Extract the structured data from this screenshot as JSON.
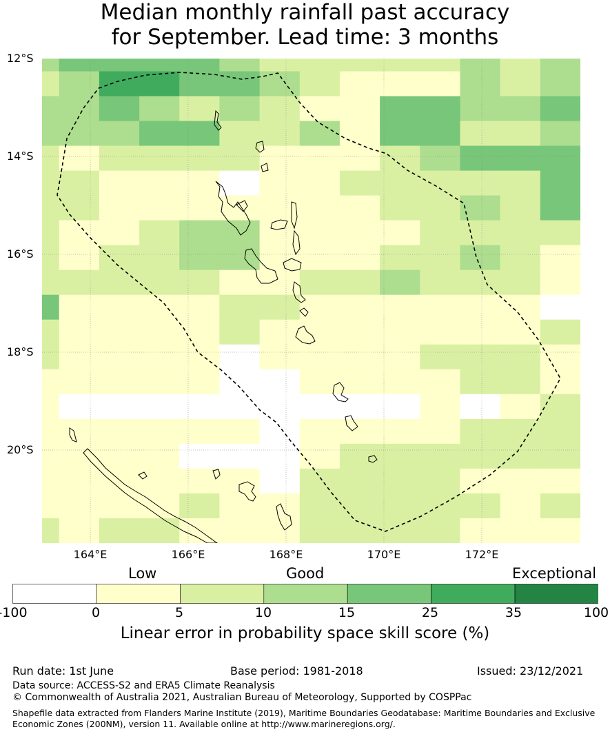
{
  "title_line1": "Median monthly rainfall past accuracy",
  "title_line2": "for September. Lead time: 3 months",
  "lat_labels": [
    "12°S",
    "14°S",
    "16°S",
    "18°S",
    "20°S"
  ],
  "lon_labels": [
    "164°E",
    "166°E",
    "168°E",
    "170°E",
    "172°E"
  ],
  "legend": {
    "words": [
      "Low",
      "Good",
      "Exceptional"
    ],
    "ticks": [
      "-100",
      "0",
      "5",
      "10",
      "15",
      "25",
      "35",
      "100"
    ],
    "colors": [
      "#ffffff",
      "#ffffcc",
      "#d9f0a3",
      "#addd8e",
      "#78c679",
      "#41ab5d",
      "#238443"
    ],
    "title": "Linear error in probability space skill score (%)"
  },
  "footer": {
    "run_date": "Run date: 1st June",
    "base_period": "Base period: 1981-2018",
    "issued": "Issued: 23/12/2021",
    "data_source": "Data source: ACCESS-S2 and ERA5 Climate Reanalysis",
    "copyright": "© Commonwealth of Australia 2021, Australian Bureau of Meteorology, Supported by COSPPac",
    "shapefile_line1": "Shapefile data extracted from Flanders Marine Institute (2019), Maritime Boundaries Geodatabase: Maritime Boundaries and Exclusive",
    "shapefile_line2": "Economic Zones (200NM), version 11. Available online at http://www.marineregions.org/."
  },
  "grid_levels": [
    "34444322222323",
    "23554432111323",
    "33432321144334",
    "33344223144223",
    "21222211123444",
    "22111011222224",
    "22111111122324",
    "21123311112222",
    "21223311122321",
    "22222112232221",
    "41111221111110",
    "21111211111112",
    "21111011112221",
    "11111001111221",
    "10000000001012",
    "11111101111222",
    "11110001222222",
    "11111102222111",
    "11112112222212",
    "21221112222111"
  ]
}
